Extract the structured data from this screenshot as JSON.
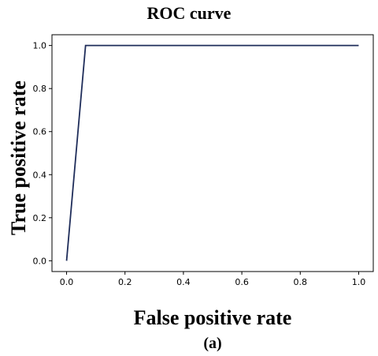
{
  "chart_data": {
    "type": "line",
    "title": "ROC curve",
    "xlabel": "False positive rate",
    "ylabel": "True positive rate",
    "caption": "(a)",
    "xlim": [
      -0.05,
      1.05
    ],
    "ylim": [
      -0.05,
      1.05
    ],
    "xticks": [
      "0.0",
      "0.2",
      "0.4",
      "0.6",
      "0.8",
      "1.0"
    ],
    "yticks": [
      "0.0",
      "0.2",
      "0.4",
      "0.6",
      "0.8",
      "1.0"
    ],
    "grid": false,
    "series": [
      {
        "color": "#1f2d5a",
        "x": [
          0.0,
          0.065,
          1.0
        ],
        "y": [
          0.0,
          1.0,
          1.0
        ]
      }
    ]
  }
}
